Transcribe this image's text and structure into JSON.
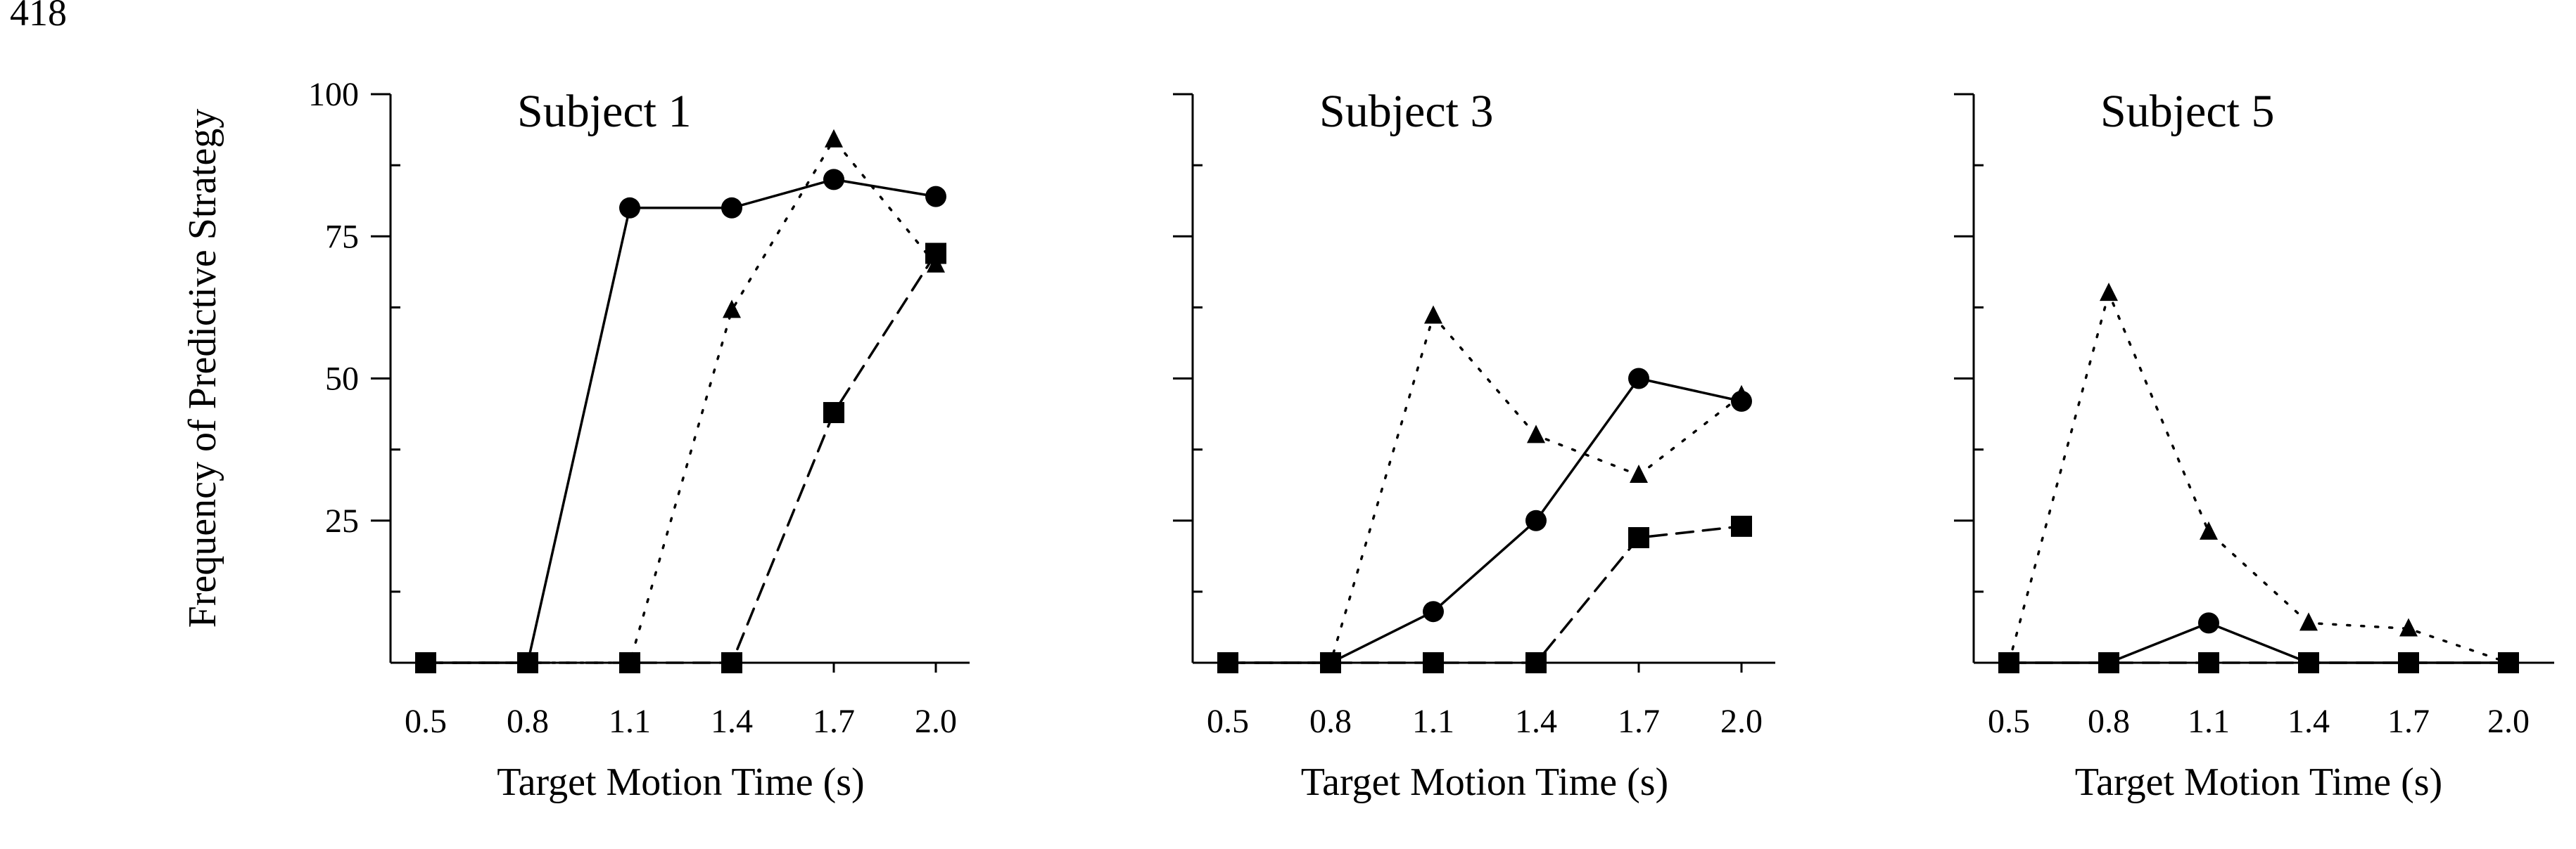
{
  "page_number": "418",
  "chart_data": [
    {
      "type": "line",
      "title": "Subject 1",
      "xlabel": "Target Motion Time (s)",
      "ylabel": "Frequency of Predictive Strategy",
      "categories": [
        "0.5",
        "0.8",
        "1.1",
        "1.4",
        "1.7",
        "2.0"
      ],
      "ylim": [
        0,
        100
      ],
      "yticks": [
        "25",
        "50",
        "75",
        "100"
      ],
      "series": [
        {
          "marker": "circle",
          "line": "solid",
          "values": [
            0,
            0,
            80,
            80,
            85,
            82
          ]
        },
        {
          "marker": "triangle",
          "line": "dotted",
          "values": [
            0,
            0,
            0,
            62,
            92,
            70
          ]
        },
        {
          "marker": "square",
          "line": "dashed",
          "values": [
            0,
            0,
            0,
            0,
            44,
            72
          ]
        }
      ]
    },
    {
      "type": "line",
      "title": "Subject 3",
      "xlabel": "Target Motion Time (s)",
      "ylabel": "",
      "categories": [
        "0.5",
        "0.8",
        "1.1",
        "1.4",
        "1.7",
        "2.0"
      ],
      "ylim": [
        0,
        100
      ],
      "yticks": [],
      "series": [
        {
          "marker": "circle",
          "line": "solid",
          "values": [
            0,
            0,
            9,
            25,
            50,
            46
          ]
        },
        {
          "marker": "triangle",
          "line": "dotted",
          "values": [
            0,
            0,
            61,
            40,
            33,
            47
          ]
        },
        {
          "marker": "square",
          "line": "dashed",
          "values": [
            0,
            0,
            0,
            0,
            22,
            24
          ]
        }
      ]
    },
    {
      "type": "line",
      "title": "Subject 5",
      "xlabel": "Target Motion Time (s)",
      "ylabel": "",
      "categories": [
        "0.5",
        "0.8",
        "1.1",
        "1.4",
        "1.7",
        "2.0"
      ],
      "ylim": [
        0,
        100
      ],
      "yticks": [],
      "series": [
        {
          "marker": "circle",
          "line": "solid",
          "values": [
            0,
            0,
            7,
            0,
            0,
            0
          ]
        },
        {
          "marker": "triangle",
          "line": "dotted",
          "values": [
            0,
            65,
            23,
            7,
            6,
            0
          ]
        },
        {
          "marker": "square",
          "line": "dashed",
          "values": [
            0,
            0,
            0,
            0,
            0,
            0
          ]
        }
      ]
    }
  ]
}
